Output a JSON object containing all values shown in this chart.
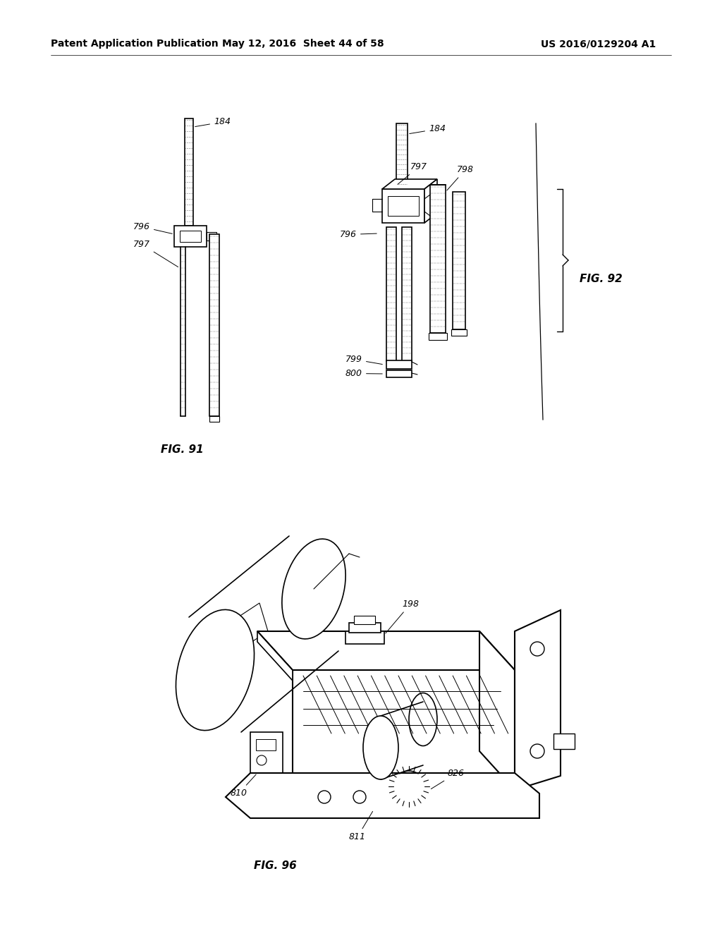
{
  "bg_color": "#ffffff",
  "header_left": "Patent Application Publication",
  "header_mid": "May 12, 2016  Sheet 44 of 58",
  "header_right": "US 2016/0129204 A1",
  "fig91_label": "FIG. 91",
  "fig92_label": "FIG. 92",
  "fig96_label": "FIG. 96",
  "label_fontsize": 9,
  "fig_label_fontsize": 11,
  "header_fontsize": 10
}
